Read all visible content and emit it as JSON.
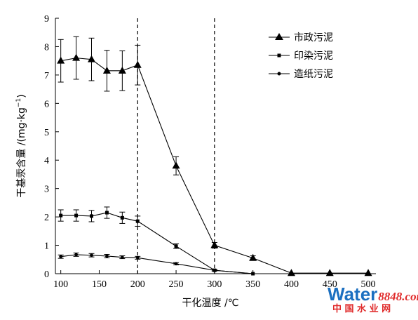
{
  "chart_data": {
    "type": "line",
    "xlabel": "干化温度 /℃",
    "ylabel_main": "干基汞含量 /(mg·kg",
    "ylabel_sup": "−1",
    "ylabel_close": ")",
    "xlim": [
      93,
      510
    ],
    "ylim": [
      0,
      9
    ],
    "x_ticks": [
      100,
      150,
      200,
      250,
      300,
      350,
      400,
      450,
      500
    ],
    "y_ticks": [
      0,
      1,
      2,
      3,
      4,
      5,
      6,
      7,
      8,
      9
    ],
    "vlines": [
      200,
      300
    ],
    "legend_position": "top-right",
    "series": [
      {
        "name": "市政污泥",
        "marker": "triangle",
        "x": [
          100,
          120,
          140,
          160,
          180,
          200,
          250,
          300,
          350,
          400,
          450,
          500
        ],
        "y": [
          7.5,
          7.6,
          7.55,
          7.15,
          7.15,
          7.35,
          3.8,
          1.0,
          0.55,
          0.02,
          0.02,
          0.02
        ],
        "err": [
          0.75,
          0.75,
          0.75,
          0.72,
          0.7,
          0.7,
          0.32,
          0.1,
          0.08,
          0,
          0,
          0
        ]
      },
      {
        "name": "印染污泥",
        "marker": "square",
        "x": [
          100,
          120,
          140,
          160,
          180,
          200,
          250,
          300,
          350
        ],
        "y": [
          2.05,
          2.05,
          2.03,
          2.15,
          1.97,
          1.85,
          0.97,
          0.12,
          0.0
        ],
        "err": [
          0.2,
          0.2,
          0.2,
          0.2,
          0.2,
          0.18,
          0.08,
          0.03,
          0
        ]
      },
      {
        "name": "造纸污泥",
        "marker": "circle",
        "x": [
          100,
          120,
          140,
          160,
          180,
          200,
          250,
          300,
          350
        ],
        "y": [
          0.6,
          0.67,
          0.65,
          0.62,
          0.58,
          0.56,
          0.35,
          0.12,
          0.0
        ],
        "err": [
          0.06,
          0.06,
          0.06,
          0.06,
          0.05,
          0.05,
          0.04,
          0.02,
          0
        ]
      }
    ]
  },
  "watermark": {
    "main": "Water",
    "num": "8848",
    "dotcom": ".com",
    "sub": "中 国 水 业 网",
    "color_main": "#1b6fc0",
    "color_accent": "#e02a2a"
  }
}
